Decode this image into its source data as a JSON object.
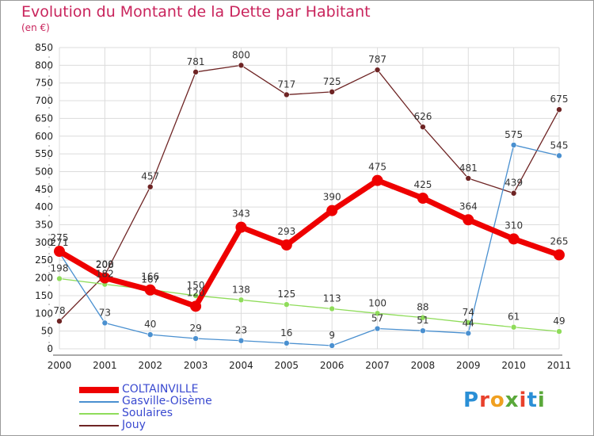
{
  "header": {
    "title": "Evolution du Montant de la Dette par Habitant",
    "unit": "(en €)"
  },
  "brand": {
    "text": "Proxiti",
    "letter_colors": [
      "#2a8fd6",
      "#e8412c",
      "#f0a020",
      "#5aa83a",
      "#e8412c",
      "#2a8fd6",
      "#5aa83a"
    ]
  },
  "chart_data": {
    "type": "line",
    "title": "Evolution du Montant de la Dette par Habitant",
    "subtitle": "(en €)",
    "xlabel": "",
    "ylabel": "",
    "x": [
      "2000",
      "2001",
      "2002",
      "2003",
      "2004",
      "2005",
      "2006",
      "2007",
      "2008",
      "2009",
      "2010",
      "2011"
    ],
    "ylim": [
      0,
      850
    ],
    "yticks": [
      0,
      50,
      100,
      150,
      200,
      250,
      300,
      350,
      400,
      450,
      500,
      550,
      600,
      650,
      700,
      750,
      800,
      850
    ],
    "grid": true,
    "legend_position": "bottom-left",
    "series": [
      {
        "name": "COLTAINVILLE",
        "color": "#ee0000",
        "values": [
          275,
          200,
          166,
          120,
          343,
          293,
          390,
          475,
          425,
          364,
          310,
          265
        ]
      },
      {
        "name": "Gasville-Oisème",
        "color": "#4a90d0",
        "values": [
          271,
          73,
          40,
          29,
          23,
          16,
          9,
          57,
          51,
          44,
          575,
          545
        ]
      },
      {
        "name": "Soulaires",
        "color": "#8fdc5a",
        "values": [
          198,
          182,
          167,
          150,
          138,
          125,
          113,
          100,
          88,
          74,
          61,
          49
        ]
      },
      {
        "name": "Jouy",
        "color": "#6e2424",
        "values": [
          78,
          208,
          457,
          781,
          800,
          717,
          725,
          787,
          626,
          481,
          439,
          675
        ]
      }
    ]
  }
}
